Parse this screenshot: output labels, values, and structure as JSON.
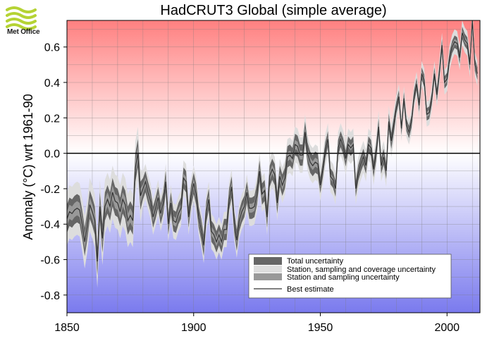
{
  "logo": {
    "text": "Met Office",
    "color": "#b5d334"
  },
  "chart_data": {
    "type": "area",
    "title": "HadCRUT3 Global (simple average)",
    "xlabel": "",
    "ylabel": "Anomaly (°C) wrt 1961-90",
    "xlim": [
      1850,
      2013
    ],
    "ylim": [
      -0.9,
      0.75
    ],
    "x_ticks": [
      1850,
      1900,
      1950,
      2000
    ],
    "y_ticks": [
      -0.8,
      -0.6,
      -0.4,
      -0.2,
      0.0,
      0.2,
      0.4,
      0.6
    ],
    "y_tick_labels": [
      "-0.8",
      "-0.6",
      "-0.4",
      "-0.2",
      "0.0",
      "0.2",
      "0.4",
      "0.6"
    ],
    "grid": true,
    "background": {
      "top_color": "#ff8080",
      "zero_color": "#ffffff",
      "bottom_color": "#7a7aee"
    },
    "legend": {
      "position": "bottom-right",
      "entries": [
        {
          "label": "Total uncertainty",
          "color": "#666666"
        },
        {
          "label": "Station, sampling and coverage uncertainty",
          "color": "#dddddd"
        },
        {
          "label": "Station and sampling uncertainty",
          "color": "#999999"
        },
        {
          "label": "Best estimate",
          "color": "#333333"
        }
      ]
    },
    "series": [
      {
        "name": "Best estimate",
        "x": [
          1850,
          1851,
          1852,
          1853,
          1854,
          1855,
          1856,
          1857,
          1858,
          1859,
          1860,
          1861,
          1862,
          1863,
          1864,
          1865,
          1866,
          1867,
          1868,
          1869,
          1870,
          1871,
          1872,
          1873,
          1874,
          1875,
          1876,
          1877,
          1878,
          1879,
          1880,
          1881,
          1882,
          1883,
          1884,
          1885,
          1886,
          1887,
          1888,
          1889,
          1890,
          1891,
          1892,
          1893,
          1894,
          1895,
          1896,
          1897,
          1898,
          1899,
          1900,
          1901,
          1902,
          1903,
          1904,
          1905,
          1906,
          1907,
          1908,
          1909,
          1910,
          1911,
          1912,
          1913,
          1914,
          1915,
          1916,
          1917,
          1918,
          1919,
          1920,
          1921,
          1922,
          1923,
          1924,
          1925,
          1926,
          1927,
          1928,
          1929,
          1930,
          1931,
          1932,
          1933,
          1934,
          1935,
          1936,
          1937,
          1938,
          1939,
          1940,
          1941,
          1942,
          1943,
          1944,
          1945,
          1946,
          1947,
          1948,
          1949,
          1950,
          1951,
          1952,
          1953,
          1954,
          1955,
          1956,
          1957,
          1958,
          1959,
          1960,
          1961,
          1962,
          1963,
          1964,
          1965,
          1966,
          1967,
          1968,
          1969,
          1970,
          1971,
          1972,
          1973,
          1974,
          1975,
          1976,
          1977,
          1978,
          1979,
          1980,
          1981,
          1982,
          1983,
          1984,
          1985,
          1986,
          1987,
          1988,
          1989,
          1990,
          1991,
          1992,
          1993,
          1994,
          1995,
          1996,
          1997,
          1998,
          1999,
          2000,
          2001,
          2002,
          2003,
          2004,
          2005,
          2006,
          2007,
          2008,
          2009,
          2010,
          2011,
          2012
        ],
        "values": [
          -0.37,
          -0.33,
          -0.34,
          -0.32,
          -0.31,
          -0.32,
          -0.4,
          -0.5,
          -0.41,
          -0.29,
          -0.33,
          -0.38,
          -0.61,
          -0.3,
          -0.48,
          -0.3,
          -0.26,
          -0.3,
          -0.22,
          -0.27,
          -0.28,
          -0.33,
          -0.26,
          -0.29,
          -0.38,
          -0.35,
          -0.38,
          -0.08,
          0.0,
          -0.24,
          -0.2,
          -0.16,
          -0.22,
          -0.27,
          -0.36,
          -0.31,
          -0.25,
          -0.34,
          -0.28,
          -0.16,
          -0.4,
          -0.28,
          -0.38,
          -0.39,
          -0.34,
          -0.31,
          -0.14,
          -0.16,
          -0.36,
          -0.24,
          -0.17,
          -0.23,
          -0.36,
          -0.43,
          -0.52,
          -0.33,
          -0.26,
          -0.44,
          -0.46,
          -0.5,
          -0.46,
          -0.5,
          -0.43,
          -0.43,
          -0.26,
          -0.19,
          -0.39,
          -0.49,
          -0.38,
          -0.33,
          -0.3,
          -0.22,
          -0.31,
          -0.31,
          -0.3,
          -0.23,
          -0.1,
          -0.23,
          -0.21,
          -0.36,
          -0.13,
          -0.09,
          -0.12,
          -0.28,
          -0.13,
          -0.18,
          -0.14,
          -0.02,
          -0.01,
          -0.03,
          0.05,
          0.04,
          -0.01,
          -0.01,
          0.12,
          0.0,
          -0.05,
          -0.07,
          -0.05,
          -0.06,
          -0.18,
          -0.09,
          0.02,
          0.08,
          -0.13,
          -0.15,
          -0.2,
          0.03,
          0.08,
          0.04,
          -0.03,
          0.05,
          0.03,
          0.05,
          -0.2,
          -0.11,
          -0.06,
          -0.02,
          -0.07,
          0.05,
          0.03,
          -0.09,
          0.0,
          0.15,
          -0.07,
          -0.02,
          -0.1,
          0.18,
          0.07,
          0.16,
          0.26,
          0.32,
          0.14,
          0.31,
          0.16,
          0.12,
          0.18,
          0.32,
          0.39,
          0.27,
          0.45,
          0.41,
          0.22,
          0.23,
          0.31,
          0.45,
          0.33,
          0.46,
          0.61,
          0.4,
          0.42,
          0.54,
          0.6,
          0.63,
          0.62,
          0.54,
          0.68,
          0.64,
          0.62,
          0.5,
          0.75,
          0.5,
          0.45
        ]
      }
    ]
  }
}
